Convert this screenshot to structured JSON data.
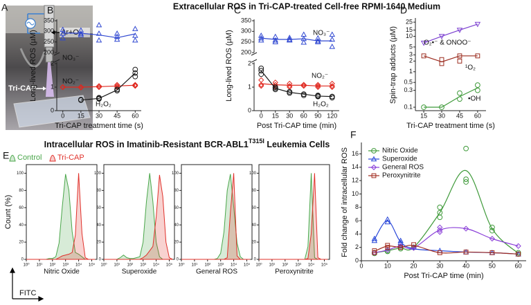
{
  "panel_labels": [
    "A",
    "B",
    "C",
    "D",
    "E",
    "F"
  ],
  "heading_1": "Extracellular ROS in Tri-CAP-treated Cell-free RPMI-1640 Medium",
  "heading_2": "Intracellular ROS in Imatinib-Resistant BCR-ABL1",
  "heading_2_sup": "T315I",
  "heading_2_end": " Leukemia Cells",
  "photo_labels": [
    "Ar+O₂",
    "Tri-CAP"
  ],
  "chart_data": [
    {
      "type": "line",
      "ylabel": "Long-lived ROS (µM)",
      "ylim": [
        200,
        350
      ],
      "yticks": [
        200,
        250,
        300,
        350
      ],
      "series": [
        {
          "name": "NO₃⁻",
          "color": "#2f47d1",
          "marker": "triangle",
          "values": [
            292,
            291,
            283,
            270,
            288
          ],
          "replicates": [
            [
              308,
              290,
              268
            ],
            [
              305,
              290,
              283
            ],
            [
              330,
              290,
              258
            ],
            [
              290,
              275,
              262
            ],
            [
              312,
              280,
              258
            ]
          ]
        }
      ]
    },
    {
      "type": "line",
      "xlabel": "Tri-CAP treatment time (s)",
      "x": [
        0,
        15,
        30,
        45,
        60
      ],
      "xlim": [
        -5,
        65
      ],
      "xticks": [
        0,
        15,
        30,
        45,
        60
      ],
      "ylim": [
        0,
        2
      ],
      "yticks": [
        0,
        1,
        2
      ],
      "series": [
        {
          "name": "NO₂⁻",
          "color": "#e0281f",
          "marker": "diamond",
          "values": [
            1,
            1,
            1.02,
            1.05,
            1.08
          ],
          "replicates": [
            [
              1,
              1,
              1
            ],
            [
              1,
              1,
              0.98
            ],
            [
              1.05,
              1,
              1
            ],
            [
              1.05,
              1.1,
              1
            ],
            [
              1.1,
              1.05,
              1.08
            ]
          ]
        },
        {
          "name": "H₂O₂",
          "color": "#1a1a1a",
          "marker": "circle",
          "values": [
            null,
            0.45,
            0.52,
            0.88,
            1.6
          ],
          "replicates": [
            [],
            [
              0.45,
              0.45,
              0.47
            ],
            [
              0.5,
              0.52,
              0.55
            ],
            [
              0.9,
              0.85,
              0.9
            ],
            [
              1.75,
              1.6,
              1.45
            ]
          ]
        }
      ]
    },
    {
      "type": "line",
      "ylabel": "Long-lived ROS (µM)",
      "ylim": [
        200,
        350
      ],
      "yticks": [
        200,
        250,
        300,
        350
      ],
      "series": [
        {
          "name": "NO₃⁻",
          "color": "#2f47d1",
          "marker": "triangle",
          "values": [
            268,
            262,
            262,
            265,
            255,
            255
          ],
          "replicates": [
            [
              280,
              268,
              258
            ],
            [
              275,
              258,
              250
            ],
            [
              270,
              262,
              258
            ],
            [
              285,
              265,
              248
            ],
            [
              268,
              255,
              250
            ],
            [
              285,
              262,
              228
            ]
          ]
        }
      ]
    },
    {
      "type": "line",
      "xlabel": "Post Tri-CAP time (min)",
      "categories": [
        "0",
        "15",
        "30",
        "60",
        "90",
        "120"
      ],
      "ylim": [
        0,
        2
      ],
      "yticks": [
        0,
        1,
        2
      ],
      "series": [
        {
          "name": "NO₂⁻",
          "color": "#e0281f",
          "marker": "diamond",
          "values": [
            1.15,
            1.1,
            1.08,
            1.08,
            1.05,
            1.05
          ],
          "replicates": [
            [
              1.3,
              1.1,
              1.05
            ],
            [
              1.2,
              1.1,
              1.0
            ],
            [
              1.15,
              1.05,
              1.0
            ],
            [
              1.1,
              1.05,
              1.1
            ],
            [
              1.1,
              1.0,
              1.05
            ],
            [
              1.15,
              1.0,
              1.05
            ]
          ]
        },
        {
          "name": "H₂O₂",
          "color": "#1a1a1a",
          "marker": "circle",
          "values": [
            1.7,
            0.95,
            0.78,
            0.7,
            0.62,
            0.6
          ],
          "replicates": [
            [
              1.8,
              1.7,
              1.55
            ],
            [
              1.0,
              0.95,
              0.9
            ],
            [
              0.8,
              0.75,
              0.8
            ],
            [
              0.7,
              0.7,
              0.65
            ],
            [
              0.65,
              0.6,
              0.62
            ],
            [
              0.6,
              0.55,
              0.6
            ]
          ]
        }
      ]
    },
    {
      "type": "line",
      "xlabel": "Tri-CAP treatment time (s)",
      "ylabel": "Spin-trap adducts (µM)",
      "x": [
        15,
        30,
        45,
        60
      ],
      "xlim": [
        8,
        67
      ],
      "xticks": [
        15,
        30,
        45,
        60
      ],
      "log_y": true,
      "ylim": [
        0.08,
        30
      ],
      "yticks": [
        0.1,
        0.3,
        0.5,
        1,
        2,
        3,
        5,
        10,
        15,
        25
      ],
      "series": [
        {
          "name": "O₂•⁻ & ONOO⁻",
          "color": "#7b3fd0",
          "marker": "triangle-down",
          "values": [
            6.5,
            10,
            15,
            22
          ],
          "replicates": [
            [
              6.5
            ],
            [
              10
            ],
            [
              15
            ],
            [
              22
            ]
          ]
        },
        {
          "name": "¹O₂",
          "color": "#9b2b1e",
          "marker": "square",
          "values": [
            2.8,
            1.9,
            2.8,
            2.8
          ],
          "replicates": [
            [
              2.8
            ],
            [
              1.7,
              2.2
            ],
            [
              2.8,
              2.0
            ],
            [
              2.8
            ]
          ]
        },
        {
          "name": "•OH",
          "color": "#3f9a3a",
          "marker": "circle",
          "values": [
            0.1,
            0.1,
            0.2,
            0.35
          ],
          "replicates": [
            [
              0.1
            ],
            [
              0.1
            ],
            [
              0.25,
              0.17
            ],
            [
              0.42,
              0.3
            ]
          ]
        }
      ]
    },
    {
      "type": "area",
      "xlabel": "Nitric Oxide",
      "ylabel": "Count (%)",
      "axis_arrow_label": "FITC",
      "x": [
        1,
        1.8,
        3.2,
        5.6,
        10,
        18,
        32,
        56,
        100,
        180,
        320,
        560,
        1000,
        1800,
        3200,
        5600,
        10000,
        18000,
        32000,
        56000,
        100000,
        180000
      ],
      "log_x": true,
      "xlim": [
        1,
        250000
      ],
      "xticks": [
        {
          "value": 1,
          "label": "10⁰"
        },
        {
          "value": 10,
          "label": "10¹"
        },
        {
          "value": 100,
          "label": "10²"
        },
        {
          "value": 1000,
          "label": "10³"
        },
        {
          "value": 10000,
          "label": "10⁴"
        },
        {
          "value": 100000,
          "label": "10⁵"
        }
      ],
      "ylim": [
        0,
        110
      ],
      "yticks": [
        0,
        20,
        40,
        60,
        80,
        100
      ],
      "series": [
        {
          "name": "Control",
          "color": "#4aa64a",
          "values": [
            0,
            0,
            0,
            0,
            0,
            0,
            0,
            1,
            1,
            3,
            19,
            61,
            99,
            80,
            32,
            8,
            6,
            3,
            0,
            0,
            0,
            0
          ]
        },
        {
          "name": "Tri-CAP",
          "color": "#e0302a",
          "values": [
            0,
            0,
            0,
            0,
            0,
            0,
            0,
            0,
            0,
            0,
            2,
            4,
            5,
            6,
            8,
            28,
            100,
            30,
            2,
            0,
            0,
            0
          ]
        }
      ]
    },
    {
      "type": "area",
      "xlabel": "Superoxide",
      "x": [
        1,
        1.8,
        3.2,
        5.6,
        10,
        18,
        32,
        56,
        100,
        180,
        320,
        560,
        1000,
        1800,
        3200,
        5600,
        10000,
        18000,
        32000,
        56000,
        100000,
        180000
      ],
      "log_x": true,
      "xlim": [
        1,
        250000
      ],
      "xticks": [
        {
          "value": 1,
          "label": "10⁰"
        },
        {
          "value": 10,
          "label": "10¹"
        },
        {
          "value": 100,
          "label": "10²"
        },
        {
          "value": 1000,
          "label": "10³"
        },
        {
          "value": 10000,
          "label": "10⁴"
        },
        {
          "value": 100000,
          "label": "10⁵"
        }
      ],
      "ylim": [
        0,
        110
      ],
      "yticks": [
        0,
        20,
        40,
        60,
        80,
        100
      ],
      "series": [
        {
          "color": "#4aa64a",
          "values": [
            0,
            0,
            0,
            0,
            0,
            2,
            5,
            2,
            1,
            1,
            2,
            3,
            20,
            67,
            100,
            67,
            20,
            3,
            0,
            0,
            0,
            0
          ]
        },
        {
          "color": "#e0302a",
          "values": [
            0,
            0,
            0,
            0,
            0,
            0,
            0,
            0,
            0,
            0,
            0,
            0,
            2,
            5,
            10,
            15,
            49,
            98,
            73,
            20,
            2,
            0
          ]
        }
      ]
    },
    {
      "type": "area",
      "xlabel": "General ROS",
      "x": [
        1,
        1.8,
        3.2,
        5.6,
        10,
        18,
        32,
        56,
        100,
        180,
        320,
        560,
        1000,
        1800,
        3200,
        5600,
        10000,
        18000,
        32000,
        56000,
        100000,
        180000
      ],
      "log_x": true,
      "xlim": [
        1,
        250000
      ],
      "xticks": [
        {
          "value": 1,
          "label": "10⁰"
        },
        {
          "value": 10,
          "label": "10¹"
        },
        {
          "value": 100,
          "label": "10²"
        },
        {
          "value": 1000,
          "label": "10³"
        },
        {
          "value": 10000,
          "label": "10⁴"
        },
        {
          "value": 100000,
          "label": "10⁵"
        }
      ],
      "ylim": [
        0,
        110
      ],
      "yticks": [
        0,
        20,
        40,
        60,
        80,
        100
      ],
      "series": [
        {
          "color": "#4aa64a",
          "values": [
            0,
            0,
            0,
            0,
            0,
            0,
            0,
            0,
            0,
            0,
            0,
            1,
            7,
            32,
            80,
            99,
            61,
            19,
            3,
            0,
            0,
            0
          ]
        },
        {
          "color": "#e0302a",
          "values": [
            0,
            0,
            0,
            0,
            0,
            0,
            0,
            0,
            0,
            0,
            0,
            0,
            0,
            0,
            2,
            55,
            100,
            4,
            0,
            0,
            0,
            0
          ]
        }
      ]
    },
    {
      "type": "area",
      "xlabel": "Peroxynitrite",
      "x": [
        1,
        1.8,
        3.2,
        5.6,
        10,
        18,
        32,
        56,
        100,
        180,
        320,
        560,
        1000,
        1800,
        3200,
        5600,
        10000,
        18000,
        32000,
        56000,
        100000,
        180000
      ],
      "log_x": true,
      "xlim": [
        1,
        250000
      ],
      "xticks": [
        {
          "value": 1,
          "label": "10⁰"
        },
        {
          "value": 10,
          "label": "10¹"
        },
        {
          "value": 100,
          "label": "10²"
        },
        {
          "value": 1000,
          "label": "10³"
        },
        {
          "value": 10000,
          "label": "10⁴"
        },
        {
          "value": 100000,
          "label": "10⁵"
        }
      ],
      "ylim": [
        0,
        110
      ],
      "yticks": [
        0,
        20,
        40,
        60,
        80,
        100
      ],
      "series": [
        {
          "color": "#4aa64a",
          "values": [
            0,
            0,
            0,
            0,
            0,
            0,
            0,
            0,
            0,
            0,
            0,
            0,
            0,
            0,
            0,
            15,
            100,
            2,
            0,
            0,
            0,
            0
          ]
        },
        {
          "color": "#e0302a",
          "values": [
            0,
            0,
            0,
            0,
            0,
            0,
            0,
            0,
            0,
            0,
            0,
            0,
            0,
            0,
            0,
            1,
            30,
            100,
            2,
            0,
            0,
            0
          ]
        }
      ]
    },
    {
      "type": "line",
      "smooth": true,
      "legend": "upper-left",
      "xlabel": "Post Tri-CAP time (min)",
      "ylabel": "Fold change of intracellular ROS",
      "x": [
        5,
        10,
        15,
        20,
        30,
        40,
        50,
        60
      ],
      "xlim": [
        0,
        63
      ],
      "xticks": [
        0,
        10,
        20,
        30,
        40,
        50,
        60
      ],
      "ylim": [
        0,
        17.5
      ],
      "yticks": [
        0,
        2,
        4,
        6,
        8,
        10,
        12,
        14,
        16
      ],
      "series": [
        {
          "name": "Nitric Oxide",
          "color": "#3f9a3a",
          "marker": "circle",
          "values": [
            1.2,
            1.5,
            1.9,
            2.0,
            7.2,
            13.5,
            4.8,
            1.1
          ],
          "replicates": [
            [
              1.2,
              1.1
            ],
            [
              1.5,
              1.4
            ],
            [
              2.0,
              1.8
            ],
            [
              2.0
            ],
            [
              8.0,
              7.2,
              6.5
            ],
            [
              16.8,
              12.2,
              11.8
            ],
            [
              5.0,
              4.5
            ],
            [
              1.2,
              1.0
            ]
          ]
        },
        {
          "name": "Superoxide",
          "color": "#2846d8",
          "marker": "triangle",
          "values": [
            3.2,
            6.0,
            2.8,
            1.8,
            1.5,
            1.3,
            1.2,
            1.0
          ],
          "replicates": [
            [
              3.3,
              3.0
            ],
            [
              6.2,
              5.8
            ],
            [
              3.0,
              2.7
            ],
            [
              2.0
            ],
            [
              1.5
            ],
            [
              1.3
            ],
            [
              1.2
            ],
            [
              1.0
            ]
          ]
        },
        {
          "name": "General ROS",
          "color": "#8a3fd8",
          "marker": "diamond",
          "values": [
            1.2,
            1.6,
            2.2,
            1.9,
            4.6,
            4.8,
            3.3,
            2.2
          ],
          "replicates": [
            [
              1.2
            ],
            [
              1.6
            ],
            [
              2.2
            ],
            [
              1.9
            ],
            [
              5.0,
              4.6,
              4.3
            ],
            [
              4.8
            ],
            [
              3.3
            ],
            [
              2.2
            ]
          ]
        },
        {
          "name": "Peroxynitrite",
          "color": "#a02a1e",
          "marker": "square",
          "values": [
            1.4,
            2.2,
            2.0,
            2.3,
            1.2,
            1.3,
            1.2,
            1.0
          ],
          "replicates": [
            [
              1.5,
              1.2
            ],
            [
              2.3,
              2.0
            ],
            [
              2.0
            ],
            [
              2.4
            ],
            [
              1.2
            ],
            [
              1.3
            ],
            [
              1.2
            ],
            [
              1.0
            ]
          ]
        }
      ]
    }
  ]
}
